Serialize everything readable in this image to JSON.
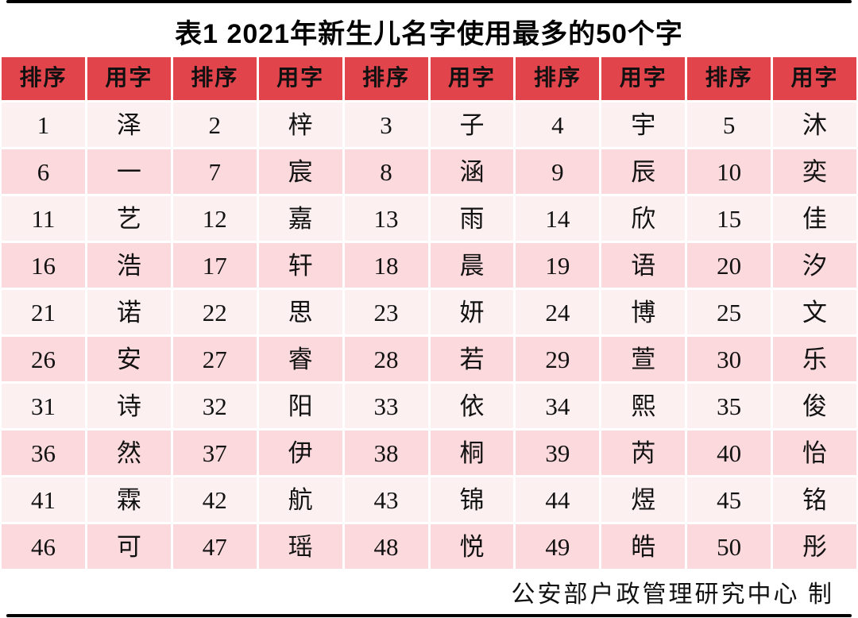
{
  "title": "表1 2021年新生儿名字使用最多的50个字",
  "footer": "公安部户政管理研究中心 制",
  "colors": {
    "header_red": "#e2444c",
    "row_light_pink": "#fdf0f1",
    "row_dark_pink": "#fbd9dc",
    "text": "#121212",
    "frame_black": "#000000",
    "background": "#ffffff"
  },
  "chart_data": {
    "type": "table",
    "title": "表1 2021年新生儿名字使用最多的50个字",
    "column_headers": [
      "排序",
      "用字",
      "排序",
      "用字",
      "排序",
      "用字",
      "排序",
      "用字",
      "排序",
      "用字"
    ],
    "rows": [
      [
        "1",
        "泽",
        "2",
        "梓",
        "3",
        "子",
        "4",
        "宇",
        "5",
        "沐"
      ],
      [
        "6",
        "一",
        "7",
        "宸",
        "8",
        "涵",
        "9",
        "辰",
        "10",
        "奕"
      ],
      [
        "11",
        "艺",
        "12",
        "嘉",
        "13",
        "雨",
        "14",
        "欣",
        "15",
        "佳"
      ],
      [
        "16",
        "浩",
        "17",
        "轩",
        "18",
        "晨",
        "19",
        "语",
        "20",
        "汐"
      ],
      [
        "21",
        "诺",
        "22",
        "思",
        "23",
        "妍",
        "24",
        "博",
        "25",
        "文"
      ],
      [
        "26",
        "安",
        "27",
        "睿",
        "28",
        "若",
        "29",
        "萱",
        "30",
        "乐"
      ],
      [
        "31",
        "诗",
        "32",
        "阳",
        "33",
        "依",
        "34",
        "熙",
        "35",
        "俊"
      ],
      [
        "36",
        "然",
        "37",
        "伊",
        "38",
        "桐",
        "39",
        "芮",
        "40",
        "怡"
      ],
      [
        "41",
        "霖",
        "42",
        "航",
        "43",
        "锦",
        "44",
        "煜",
        "45",
        "铭"
      ],
      [
        "46",
        "可",
        "47",
        "瑶",
        "48",
        "悦",
        "49",
        "皓",
        "50",
        "彤"
      ]
    ],
    "ranking_order": [
      "泽",
      "梓",
      "子",
      "宇",
      "沐",
      "一",
      "宸",
      "涵",
      "辰",
      "奕",
      "艺",
      "嘉",
      "雨",
      "欣",
      "佳",
      "浩",
      "轩",
      "晨",
      "语",
      "汐",
      "诺",
      "思",
      "妍",
      "博",
      "文",
      "安",
      "睿",
      "若",
      "萱",
      "乐",
      "诗",
      "阳",
      "依",
      "熙",
      "俊",
      "然",
      "伊",
      "桐",
      "芮",
      "怡",
      "霖",
      "航",
      "锦",
      "煜",
      "铭",
      "可",
      "瑶",
      "悦",
      "皓",
      "彤"
    ],
    "footer": "公安部户政管理研究中心 制"
  }
}
